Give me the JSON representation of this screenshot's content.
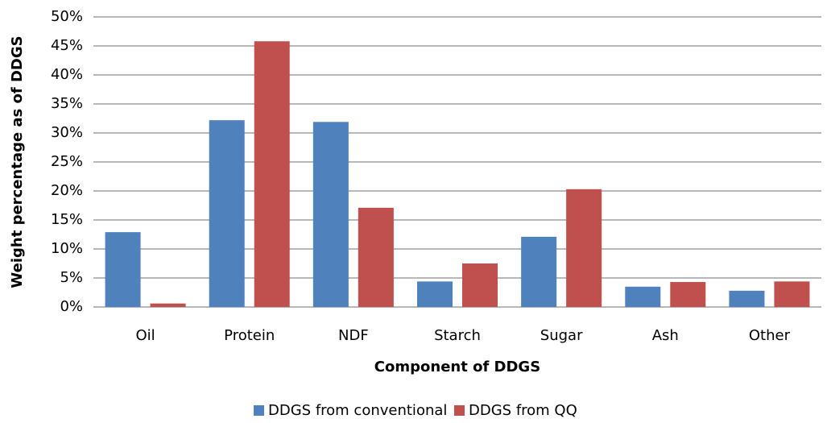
{
  "chart_data": {
    "type": "bar",
    "x_label": "Component of DDGS",
    "y_label": "Weight percentage as of DDGS",
    "categories": [
      "Oil",
      "Protein",
      "NDF",
      "Starch",
      "Sugar",
      "Ash",
      "Other"
    ],
    "series": [
      {
        "name": "DDGS from conventional",
        "color": "#4f81bd",
        "values": [
          12.9,
          32.2,
          31.9,
          4.4,
          12.1,
          3.5,
          2.8
        ]
      },
      {
        "name": "DDGS from QQ",
        "color": "#c0504d",
        "values": [
          0.6,
          45.8,
          17.1,
          7.5,
          20.3,
          4.3,
          4.4
        ]
      }
    ],
    "ylim": [
      0,
      50
    ],
    "yticks": [
      {
        "value": 0,
        "label": "0%"
      },
      {
        "value": 5,
        "label": "5%"
      },
      {
        "value": 10,
        "label": "10%"
      },
      {
        "value": 15,
        "label": "15%"
      },
      {
        "value": 20,
        "label": "20%"
      },
      {
        "value": 25,
        "label": "25%"
      },
      {
        "value": 30,
        "label": "30%"
      },
      {
        "value": 35,
        "label": "35%"
      },
      {
        "value": 40,
        "label": "40%"
      },
      {
        "value": 45,
        "label": "45%"
      },
      {
        "value": 50,
        "label": "50%"
      }
    ],
    "grid": true,
    "legend": "bottom"
  }
}
